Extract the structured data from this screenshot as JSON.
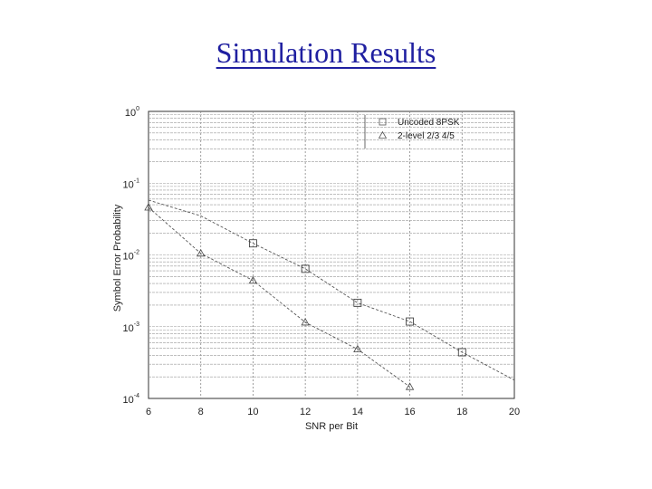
{
  "slide": {
    "title": "Simulation Results"
  },
  "chart_data": {
    "type": "line",
    "xlabel": "SNR per Bit",
    "ylabel": "Symbol Error Probability",
    "x_ticks": [
      6,
      8,
      10,
      12,
      14,
      16,
      18,
      20
    ],
    "xlim": [
      6,
      20
    ],
    "ylim": [
      0.0001,
      1
    ],
    "y_scale": "log",
    "y_ticks": [
      {
        "base": "10",
        "exp": "0"
      },
      {
        "base": "10",
        "exp": "-1"
      },
      {
        "base": "10",
        "exp": "-2"
      },
      {
        "base": "10",
        "exp": "-3"
      },
      {
        "base": "10",
        "exp": "-4"
      }
    ],
    "grid": true,
    "legend_position": "top-right",
    "series": [
      {
        "name": "Uncoded 8PSK",
        "marker": "square",
        "color": "#555555",
        "x": [
          6,
          8,
          10,
          12,
          14,
          16,
          18,
          20
        ],
        "y": [
          0.058,
          0.035,
          0.0145,
          0.0064,
          0.00215,
          0.00118,
          0.00044,
          0.00018
        ],
        "marker_x": [
          10,
          12,
          14,
          16,
          18
        ]
      },
      {
        "name": "2-level 2/3 4/5",
        "marker": "triangle",
        "color": "#555555",
        "x": [
          6,
          8,
          10,
          12,
          14,
          16
        ],
        "y": [
          0.046,
          0.0105,
          0.0044,
          0.00115,
          0.000485,
          0.000145
        ],
        "marker_x": [
          6,
          8,
          10,
          12,
          14,
          16
        ]
      }
    ]
  }
}
